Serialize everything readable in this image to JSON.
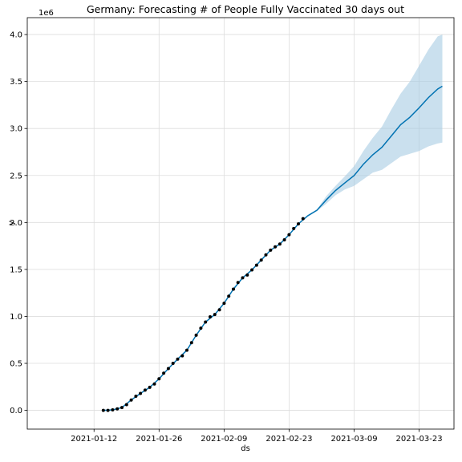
{
  "chart_data": {
    "type": "line",
    "title": "Germany: Forecasting # of People Fully Vaccinated 30 days out",
    "xlabel": "ds",
    "ylabel": "y",
    "y_offset_label": "1e6",
    "x_ticks": [
      "2021-01-12",
      "2021-01-26",
      "2021-02-09",
      "2021-02-23",
      "2021-03-09",
      "2021-03-23"
    ],
    "y_ticks": [
      "0.0",
      "0.5",
      "1.0",
      "1.5",
      "2.0",
      "2.5",
      "3.0",
      "3.5",
      "4.0"
    ],
    "xlim": [
      "2020-12-28T15:00",
      "2021-03-30T12:00"
    ],
    "ylim": [
      -0.2,
      4.18
    ],
    "y_scale": 1000000,
    "grid": true,
    "colors": {
      "forecast": "#0072B2",
      "interval": "#a6cce3",
      "observed": "#000000"
    },
    "observed": {
      "x": [
        "2021-01-14",
        "2021-01-15",
        "2021-01-16",
        "2021-01-17",
        "2021-01-18",
        "2021-01-19",
        "2021-01-20",
        "2021-01-21",
        "2021-01-22",
        "2021-01-23",
        "2021-01-24",
        "2021-01-25",
        "2021-01-26",
        "2021-01-27",
        "2021-01-28",
        "2021-01-29",
        "2021-01-30",
        "2021-01-31",
        "2021-02-01",
        "2021-02-02",
        "2021-02-03",
        "2021-02-04",
        "2021-02-05",
        "2021-02-06",
        "2021-02-07",
        "2021-02-08",
        "2021-02-09",
        "2021-02-10",
        "2021-02-11",
        "2021-02-12",
        "2021-02-13",
        "2021-02-14",
        "2021-02-15",
        "2021-02-16",
        "2021-02-17",
        "2021-02-18",
        "2021-02-19",
        "2021-02-20",
        "2021-02-21",
        "2021-02-22",
        "2021-02-23",
        "2021-02-24",
        "2021-02-25",
        "2021-02-26"
      ],
      "y": [
        0.0,
        0.0,
        0.005,
        0.015,
        0.03,
        0.06,
        0.11,
        0.15,
        0.18,
        0.215,
        0.245,
        0.28,
        0.335,
        0.395,
        0.445,
        0.5,
        0.545,
        0.58,
        0.64,
        0.72,
        0.8,
        0.875,
        0.94,
        0.995,
        1.02,
        1.07,
        1.14,
        1.215,
        1.29,
        1.36,
        1.41,
        1.44,
        1.495,
        1.545,
        1.6,
        1.655,
        1.705,
        1.74,
        1.77,
        1.815,
        1.87,
        1.935,
        1.985,
        2.04
      ]
    },
    "forecast": {
      "x": [
        "2021-01-14",
        "2021-01-16",
        "2021-01-18",
        "2021-01-20",
        "2021-01-22",
        "2021-01-24",
        "2021-01-26",
        "2021-01-28",
        "2021-01-30",
        "2021-02-01",
        "2021-02-03",
        "2021-02-05",
        "2021-02-07",
        "2021-02-09",
        "2021-02-11",
        "2021-02-13",
        "2021-02-15",
        "2021-02-17",
        "2021-02-19",
        "2021-02-21",
        "2021-02-23",
        "2021-02-25",
        "2021-02-27",
        "2021-03-01",
        "2021-03-03",
        "2021-03-05",
        "2021-03-07",
        "2021-03-09",
        "2021-03-11",
        "2021-03-13",
        "2021-03-15",
        "2021-03-17",
        "2021-03-19",
        "2021-03-21",
        "2021-03-23",
        "2021-03-25",
        "2021-03-27",
        "2021-03-28"
      ],
      "y": [
        0.0,
        0.005,
        0.03,
        0.11,
        0.18,
        0.245,
        0.335,
        0.445,
        0.545,
        0.64,
        0.8,
        0.94,
        1.02,
        1.14,
        1.29,
        1.41,
        1.495,
        1.6,
        1.705,
        1.77,
        1.87,
        1.985,
        2.07,
        2.13,
        2.24,
        2.34,
        2.42,
        2.5,
        2.62,
        2.72,
        2.8,
        2.92,
        3.04,
        3.12,
        3.22,
        3.33,
        3.42,
        3.45
      ],
      "lower": [
        0.0,
        0.005,
        0.03,
        0.11,
        0.18,
        0.245,
        0.335,
        0.445,
        0.545,
        0.64,
        0.8,
        0.94,
        1.02,
        1.14,
        1.29,
        1.41,
        1.495,
        1.6,
        1.705,
        1.77,
        1.87,
        1.985,
        2.06,
        2.12,
        2.2,
        2.29,
        2.35,
        2.39,
        2.46,
        2.53,
        2.56,
        2.63,
        2.7,
        2.73,
        2.76,
        2.81,
        2.84,
        2.85
      ],
      "upper": [
        0.0,
        0.005,
        0.03,
        0.11,
        0.18,
        0.245,
        0.335,
        0.445,
        0.545,
        0.64,
        0.8,
        0.94,
        1.02,
        1.14,
        1.29,
        1.41,
        1.495,
        1.6,
        1.705,
        1.77,
        1.87,
        1.985,
        2.08,
        2.14,
        2.28,
        2.39,
        2.49,
        2.6,
        2.76,
        2.9,
        3.02,
        3.2,
        3.37,
        3.5,
        3.67,
        3.84,
        3.98,
        4.0
      ]
    }
  }
}
